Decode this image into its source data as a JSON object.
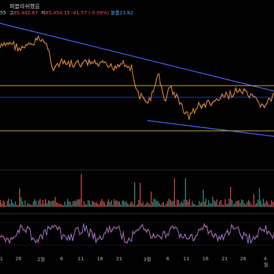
{
  "header": {
    "title": "퍼블리쉬했음",
    "ohlc": {
      "o": "55",
      "h": "85,442.67",
      "l": "85,454.15",
      "change": "-41.57 (-0.09%)",
      "volume_label": "볼륨",
      "volume": "23.82"
    }
  },
  "colors": {
    "background": "#000000",
    "price_line": "#ff9800",
    "price_line2": "#2962ff",
    "trendline": "#4f6bff",
    "hline": "#d4b64a",
    "vol_up": "#26a69a",
    "vol_down": "#ef5350",
    "osc": "#9b7fe6",
    "osc2": "#ff5252",
    "grid": "#2a2e39"
  },
  "x_axis": {
    "ticks": [
      "1",
      "26",
      "2월",
      "6",
      "11",
      "16",
      "21",
      "3월",
      "6",
      "11",
      "16",
      "21",
      "26",
      "4월"
    ]
  }
}
